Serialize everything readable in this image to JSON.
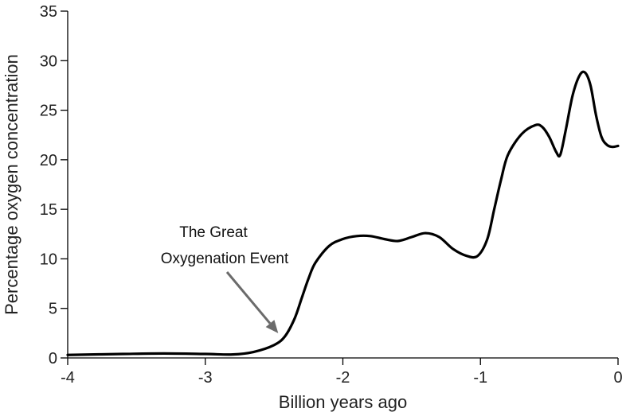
{
  "chart_data": {
    "type": "line",
    "title": "",
    "xlabel": "Billion years ago",
    "ylabel": "Percentage oxygen concentration",
    "xlim": [
      -4,
      0
    ],
    "ylim": [
      0,
      35
    ],
    "xticks": [
      -4,
      -3,
      -2,
      -1,
      0
    ],
    "yticks": [
      0,
      5,
      10,
      15,
      20,
      25,
      30,
      35
    ],
    "grid": false,
    "series": [
      {
        "name": "Oxygen concentration",
        "color": "#000000",
        "x": [
          -4.0,
          -3.6,
          -3.3,
          -3.0,
          -2.8,
          -2.65,
          -2.5,
          -2.42,
          -2.35,
          -2.3,
          -2.25,
          -2.2,
          -2.1,
          -2.0,
          -1.9,
          -1.8,
          -1.7,
          -1.6,
          -1.5,
          -1.4,
          -1.3,
          -1.2,
          -1.1,
          -1.02,
          -0.95,
          -0.9,
          -0.85,
          -0.8,
          -0.7,
          -0.6,
          -0.55,
          -0.5,
          -0.45,
          -0.42,
          -0.38,
          -0.33,
          -0.28,
          -0.24,
          -0.2,
          -0.16,
          -0.12,
          -0.08,
          -0.04,
          0.0
        ],
        "values": [
          0.3,
          0.4,
          0.45,
          0.4,
          0.35,
          0.6,
          1.3,
          2.2,
          4.0,
          6.0,
          8.0,
          9.6,
          11.3,
          12.0,
          12.3,
          12.3,
          12.0,
          11.8,
          12.2,
          12.6,
          12.2,
          11.0,
          10.3,
          10.3,
          12.0,
          15.0,
          18.0,
          20.5,
          22.6,
          23.5,
          23.3,
          22.3,
          20.8,
          20.5,
          23.0,
          26.5,
          28.5,
          28.8,
          27.5,
          24.5,
          22.3,
          21.5,
          21.3,
          21.4
        ]
      }
    ],
    "annotations": [
      {
        "lines": [
          "The Great",
          "Oxygenation Event"
        ],
        "target_x": -2.47,
        "target_y": 2.5
      }
    ]
  }
}
